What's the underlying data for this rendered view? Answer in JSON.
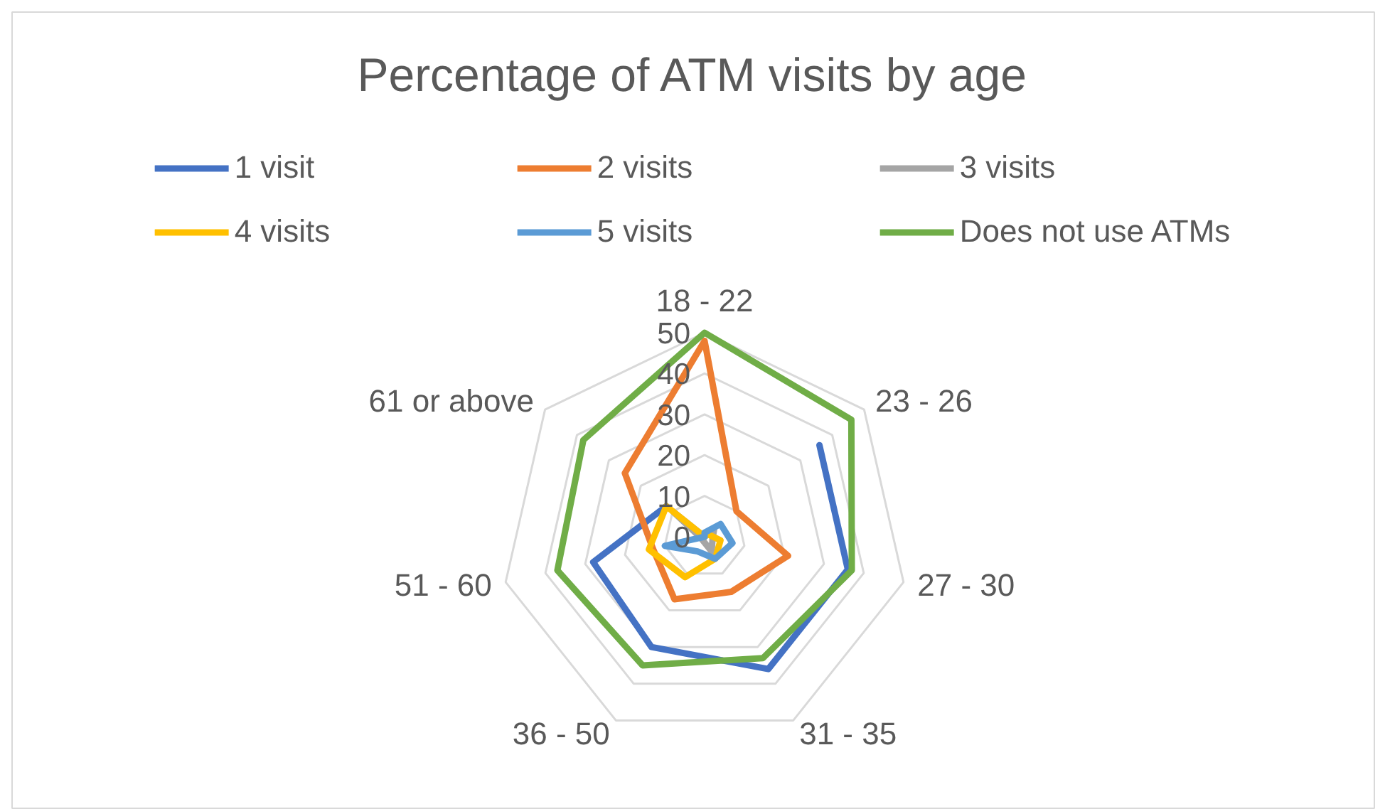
{
  "chart_data": {
    "type": "radar",
    "title": "Percentage of ATM visits by age",
    "categories": [
      "18 - 22",
      "23 - 26",
      "27 - 30",
      "31 - 35",
      "36 - 50",
      "51 - 60",
      "61 or above"
    ],
    "ylim": [
      0,
      50
    ],
    "yticks": [
      0,
      10,
      20,
      30,
      40,
      50
    ],
    "grid": true,
    "legend": "top",
    "series": [
      {
        "name": "1 visit",
        "color": "#4472c4",
        "values": [
          null,
          36,
          36,
          36,
          30,
          28,
          12
        ]
      },
      {
        "name": "2 visits",
        "color": "#ed7d31",
        "values": [
          48,
          10,
          21,
          15,
          17,
          13,
          25
        ]
      },
      {
        "name": "3 visits",
        "color": "#a5a5a5",
        "values": [
          0,
          3,
          2,
          4,
          1,
          1,
          10
        ]
      },
      {
        "name": "4 visits",
        "color": "#ffc000",
        "values": [
          0,
          1,
          4,
          6,
          11,
          14,
          12
        ]
      },
      {
        "name": "5 visits",
        "color": "#5b9bd5",
        "values": [
          1,
          5,
          7,
          6,
          4,
          10,
          0
        ]
      },
      {
        "name": "Does not use ATMs",
        "color": "#70ad47",
        "values": [
          50,
          46,
          37,
          33,
          35,
          37,
          38
        ]
      }
    ]
  }
}
